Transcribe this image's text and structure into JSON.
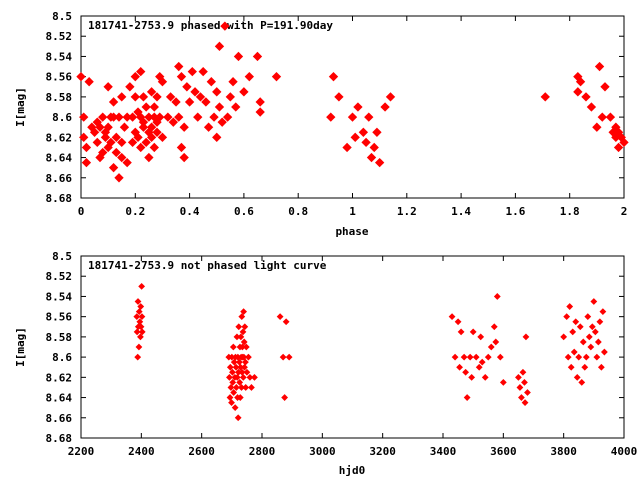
{
  "chart_data": [
    {
      "type": "scatter",
      "title": "181741-2753.9 phased with P=191.90day",
      "xlabel": "phase",
      "ylabel": "I[mag]",
      "xlim": [
        0,
        2
      ],
      "ylim": [
        8.5,
        8.68
      ],
      "y_inverted": true,
      "grid": false,
      "legend": "none",
      "marker_color": "#ff0000",
      "x_ticks": [
        "0",
        "0.2",
        "0.4",
        "0.6",
        "0.8",
        "1",
        "1.2",
        "1.4",
        "1.6",
        "1.8",
        "2"
      ],
      "y_ticks": [
        "8.5",
        "8.52",
        "8.54",
        "8.56",
        "8.58",
        "8.6",
        "8.62",
        "8.64",
        "8.66",
        "8.68"
      ],
      "points": [
        [
          0.0,
          8.56
        ],
        [
          0.01,
          8.6
        ],
        [
          0.01,
          8.62
        ],
        [
          0.02,
          8.63
        ],
        [
          0.02,
          8.645
        ],
        [
          0.03,
          8.565
        ],
        [
          0.04,
          8.61
        ],
        [
          0.05,
          8.615
        ],
        [
          0.06,
          8.605
        ],
        [
          0.06,
          8.625
        ],
        [
          0.07,
          8.61
        ],
        [
          0.07,
          8.64
        ],
        [
          0.08,
          8.6
        ],
        [
          0.08,
          8.635
        ],
        [
          0.09,
          8.615
        ],
        [
          0.09,
          8.62
        ],
        [
          0.1,
          8.63
        ],
        [
          0.1,
          8.57
        ],
        [
          0.1,
          8.61
        ],
        [
          0.11,
          8.6
        ],
        [
          0.11,
          8.625
        ],
        [
          0.12,
          8.585
        ],
        [
          0.12,
          8.6
        ],
        [
          0.12,
          8.65
        ],
        [
          0.13,
          8.62
        ],
        [
          0.13,
          8.635
        ],
        [
          0.14,
          8.6
        ],
        [
          0.14,
          8.66
        ],
        [
          0.15,
          8.58
        ],
        [
          0.15,
          8.625
        ],
        [
          0.15,
          8.64
        ],
        [
          0.16,
          8.61
        ],
        [
          0.17,
          8.6
        ],
        [
          0.17,
          8.645
        ],
        [
          0.18,
          8.57
        ],
        [
          0.19,
          8.6
        ],
        [
          0.19,
          8.625
        ],
        [
          0.2,
          8.58
        ],
        [
          0.2,
          8.615
        ],
        [
          0.2,
          8.56
        ],
        [
          0.21,
          8.595
        ],
        [
          0.21,
          8.62
        ],
        [
          0.22,
          8.555
        ],
        [
          0.22,
          8.6
        ],
        [
          0.22,
          8.63
        ],
        [
          0.23,
          8.58
        ],
        [
          0.23,
          8.605
        ],
        [
          0.23,
          8.61
        ],
        [
          0.24,
          8.59
        ],
        [
          0.24,
          8.625
        ],
        [
          0.25,
          8.6
        ],
        [
          0.25,
          8.615
        ],
        [
          0.25,
          8.64
        ],
        [
          0.26,
          8.575
        ],
        [
          0.26,
          8.61
        ],
        [
          0.26,
          8.62
        ],
        [
          0.27,
          8.59
        ],
        [
          0.27,
          8.6
        ],
        [
          0.27,
          8.63
        ],
        [
          0.28,
          8.58
        ],
        [
          0.28,
          8.605
        ],
        [
          0.28,
          8.615
        ],
        [
          0.29,
          8.56
        ],
        [
          0.29,
          8.6
        ],
        [
          0.3,
          8.565
        ],
        [
          0.3,
          8.62
        ],
        [
          0.32,
          8.6
        ],
        [
          0.33,
          8.58
        ],
        [
          0.34,
          8.605
        ],
        [
          0.35,
          8.585
        ],
        [
          0.36,
          8.55
        ],
        [
          0.36,
          8.6
        ],
        [
          0.37,
          8.56
        ],
        [
          0.37,
          8.63
        ],
        [
          0.38,
          8.61
        ],
        [
          0.38,
          8.64
        ],
        [
          0.39,
          8.57
        ],
        [
          0.4,
          8.585
        ],
        [
          0.41,
          8.555
        ],
        [
          0.42,
          8.575
        ],
        [
          0.43,
          8.6
        ],
        [
          0.44,
          8.58
        ],
        [
          0.45,
          8.555
        ],
        [
          0.46,
          8.585
        ],
        [
          0.47,
          8.61
        ],
        [
          0.48,
          8.565
        ],
        [
          0.49,
          8.6
        ],
        [
          0.5,
          8.575
        ],
        [
          0.5,
          8.62
        ],
        [
          0.51,
          8.53
        ],
        [
          0.51,
          8.59
        ],
        [
          0.52,
          8.605
        ],
        [
          0.53,
          8.51
        ],
        [
          0.54,
          8.6
        ],
        [
          0.55,
          8.58
        ],
        [
          0.56,
          8.565
        ],
        [
          0.57,
          8.59
        ],
        [
          0.58,
          8.54
        ],
        [
          0.6,
          8.575
        ],
        [
          0.62,
          8.56
        ],
        [
          0.65,
          8.54
        ],
        [
          0.66,
          8.585
        ],
        [
          0.66,
          8.595
        ],
        [
          0.72,
          8.56
        ],
        [
          0.92,
          8.6
        ],
        [
          0.93,
          8.56
        ],
        [
          0.95,
          8.58
        ],
        [
          0.98,
          8.63
        ],
        [
          1.0,
          8.6
        ],
        [
          1.01,
          8.62
        ],
        [
          1.02,
          8.59
        ],
        [
          1.04,
          8.615
        ],
        [
          1.05,
          8.625
        ],
        [
          1.06,
          8.6
        ],
        [
          1.07,
          8.64
        ],
        [
          1.08,
          8.63
        ],
        [
          1.09,
          8.615
        ],
        [
          1.1,
          8.645
        ],
        [
          1.12,
          8.59
        ],
        [
          1.14,
          8.58
        ],
        [
          1.71,
          8.58
        ],
        [
          1.83,
          8.56
        ],
        [
          1.83,
          8.575
        ],
        [
          1.84,
          8.565
        ],
        [
          1.86,
          8.58
        ],
        [
          1.88,
          8.59
        ],
        [
          1.9,
          8.61
        ],
        [
          1.91,
          8.55
        ],
        [
          1.92,
          8.6
        ],
        [
          1.93,
          8.57
        ],
        [
          1.95,
          8.6
        ],
        [
          1.96,
          8.615
        ],
        [
          1.97,
          8.61
        ],
        [
          1.97,
          8.62
        ],
        [
          1.98,
          8.63
        ],
        [
          1.98,
          8.615
        ],
        [
          1.99,
          8.62
        ],
        [
          2.0,
          8.625
        ]
      ]
    },
    {
      "type": "scatter",
      "title": "181741-2753.9 not phased light curve",
      "xlabel": "hjd0",
      "ylabel": "I[mag]",
      "xlim": [
        2200,
        4000
      ],
      "ylim": [
        8.5,
        8.68
      ],
      "y_inverted": true,
      "grid": false,
      "legend": "none",
      "marker_color": "#ff0000",
      "x_ticks": [
        "2200",
        "2400",
        "2600",
        "2800",
        "3000",
        "3200",
        "3400",
        "3600",
        "3800",
        "4000"
      ],
      "y_ticks": [
        "8.5",
        "8.52",
        "8.54",
        "8.56",
        "8.58",
        "8.6",
        "8.62",
        "8.64",
        "8.66",
        "8.68"
      ],
      "points": [
        [
          2385,
          8.56
        ],
        [
          2386,
          8.575
        ],
        [
          2388,
          8.6
        ],
        [
          2389,
          8.545
        ],
        [
          2390,
          8.57
        ],
        [
          2392,
          8.59
        ],
        [
          2393,
          8.555
        ],
        [
          2395,
          8.565
        ],
        [
          2397,
          8.58
        ],
        [
          2398,
          8.55
        ],
        [
          2399,
          8.57
        ],
        [
          2401,
          8.53
        ],
        [
          2402,
          8.56
        ],
        [
          2403,
          8.575
        ],
        [
          2690,
          8.6
        ],
        [
          2692,
          8.62
        ],
        [
          2694,
          8.64
        ],
        [
          2695,
          8.61
        ],
        [
          2697,
          8.63
        ],
        [
          2699,
          8.645
        ],
        [
          2700,
          8.6
        ],
        [
          2702,
          8.615
        ],
        [
          2703,
          8.625
        ],
        [
          2705,
          8.59
        ],
        [
          2706,
          8.635
        ],
        [
          2708,
          8.605
        ],
        [
          2710,
          8.62
        ],
        [
          2711,
          8.65
        ],
        [
          2712,
          8.6
        ],
        [
          2714,
          8.61
        ],
        [
          2715,
          8.63
        ],
        [
          2717,
          8.58
        ],
        [
          2718,
          8.62
        ],
        [
          2719,
          8.64
        ],
        [
          2720,
          8.6
        ],
        [
          2721,
          8.66
        ],
        [
          2722,
          8.615
        ],
        [
          2723,
          8.57
        ],
        [
          2725,
          8.605
        ],
        [
          2726,
          8.625
        ],
        [
          2727,
          8.59
        ],
        [
          2728,
          8.64
        ],
        [
          2729,
          8.61
        ],
        [
          2730,
          8.58
        ],
        [
          2731,
          8.6
        ],
        [
          2732,
          8.63
        ],
        [
          2733,
          8.56
        ],
        [
          2734,
          8.615
        ],
        [
          2735,
          8.59
        ],
        [
          2736,
          8.6
        ],
        [
          2737,
          8.575
        ],
        [
          2738,
          8.62
        ],
        [
          2739,
          8.555
        ],
        [
          2740,
          8.6
        ],
        [
          2741,
          8.585
        ],
        [
          2742,
          8.61
        ],
        [
          2743,
          8.57
        ],
        [
          2745,
          8.605
        ],
        [
          2746,
          8.63
        ],
        [
          2748,
          8.59
        ],
        [
          2750,
          8.615
        ],
        [
          2755,
          8.6
        ],
        [
          2760,
          8.62
        ],
        [
          2765,
          8.63
        ],
        [
          2775,
          8.62
        ],
        [
          2860,
          8.56
        ],
        [
          2870,
          8.6
        ],
        [
          2875,
          8.64
        ],
        [
          2880,
          8.565
        ],
        [
          2890,
          8.6
        ],
        [
          3430,
          8.56
        ],
        [
          3440,
          8.6
        ],
        [
          3450,
          8.565
        ],
        [
          3455,
          8.61
        ],
        [
          3460,
          8.575
        ],
        [
          3470,
          8.6
        ],
        [
          3475,
          8.615
        ],
        [
          3480,
          8.64
        ],
        [
          3490,
          8.6
        ],
        [
          3495,
          8.62
        ],
        [
          3500,
          8.575
        ],
        [
          3510,
          8.6
        ],
        [
          3520,
          8.61
        ],
        [
          3525,
          8.58
        ],
        [
          3530,
          8.605
        ],
        [
          3540,
          8.62
        ],
        [
          3550,
          8.6
        ],
        [
          3560,
          8.59
        ],
        [
          3570,
          8.57
        ],
        [
          3575,
          8.585
        ],
        [
          3580,
          8.54
        ],
        [
          3590,
          8.6
        ],
        [
          3600,
          8.625
        ],
        [
          3650,
          8.62
        ],
        [
          3655,
          8.63
        ],
        [
          3660,
          8.64
        ],
        [
          3665,
          8.615
        ],
        [
          3670,
          8.625
        ],
        [
          3672,
          8.645
        ],
        [
          3675,
          8.58
        ],
        [
          3680,
          8.635
        ],
        [
          3800,
          8.58
        ],
        [
          3810,
          8.56
        ],
        [
          3815,
          8.6
        ],
        [
          3820,
          8.55
        ],
        [
          3825,
          8.61
        ],
        [
          3830,
          8.575
        ],
        [
          3835,
          8.595
        ],
        [
          3840,
          8.565
        ],
        [
          3845,
          8.62
        ],
        [
          3850,
          8.6
        ],
        [
          3855,
          8.57
        ],
        [
          3860,
          8.625
        ],
        [
          3865,
          8.585
        ],
        [
          3870,
          8.61
        ],
        [
          3875,
          8.6
        ],
        [
          3880,
          8.56
        ],
        [
          3885,
          8.58
        ],
        [
          3890,
          8.59
        ],
        [
          3895,
          8.57
        ],
        [
          3900,
          8.545
        ],
        [
          3905,
          8.575
        ],
        [
          3910,
          8.6
        ],
        [
          3915,
          8.585
        ],
        [
          3920,
          8.565
        ],
        [
          3925,
          8.61
        ],
        [
          3930,
          8.555
        ],
        [
          3935,
          8.595
        ]
      ]
    }
  ]
}
